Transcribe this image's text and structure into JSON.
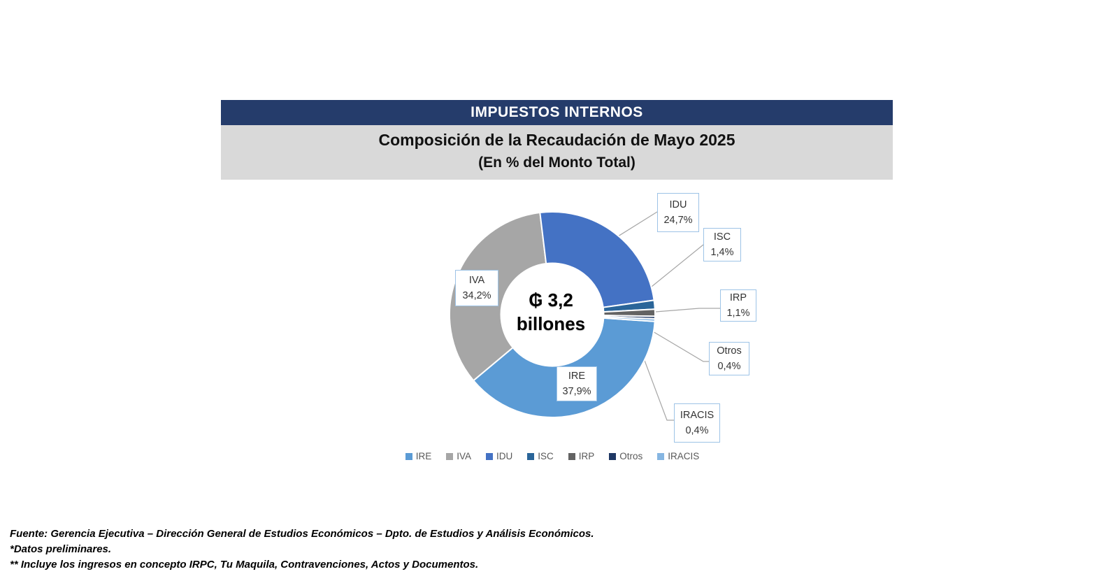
{
  "header": {
    "title": "IMPUESTOS INTERNOS",
    "subtitle_line1": "Composición de la Recaudación de Mayo 2025",
    "subtitle_line2": "(En % del Monto Total)",
    "bar_color": "#253C6B",
    "band_color": "#D9D9D9"
  },
  "chart_data": {
    "type": "pie",
    "variant": "donut",
    "title": "Composición de la Recaudación de Mayo 2025 (En % del Monto Total)",
    "rotation_deg": 93.8,
    "inner_radius_ratio": 0.5,
    "legend_position": "bottom",
    "center_label": {
      "line1": "₲ 3,2",
      "line2": "billones"
    },
    "series": [
      {
        "name": "IRE",
        "value": 37.9,
        "display": "37,9%",
        "color": "#5B9BD5"
      },
      {
        "name": "IVA",
        "value": 34.2,
        "display": "34,2%",
        "color": "#A6A6A6"
      },
      {
        "name": "IDU",
        "value": 24.7,
        "display": "24,7%",
        "color": "#4472C4"
      },
      {
        "name": "ISC",
        "value": 1.4,
        "display": "1,4%",
        "color": "#2A6599"
      },
      {
        "name": "IRP",
        "value": 1.1,
        "display": "1,1%",
        "color": "#636363"
      },
      {
        "name": "Otros",
        "value": 0.4,
        "display": "0,4%",
        "color": "#1F3864"
      },
      {
        "name": "IRACIS",
        "value": 0.4,
        "display": "0,4%",
        "color": "#86B6E2"
      }
    ]
  },
  "footer": {
    "line1": "Fuente: Gerencia Ejecutiva – Dirección General de Estudios Económicos – Dpto. de Estudios y Análisis Económicos.",
    "line2": "*Datos preliminares.",
    "line3": "** Incluye los ingresos en concepto IRPC, Tu Maquila, Contravenciones, Actos y Documentos."
  }
}
